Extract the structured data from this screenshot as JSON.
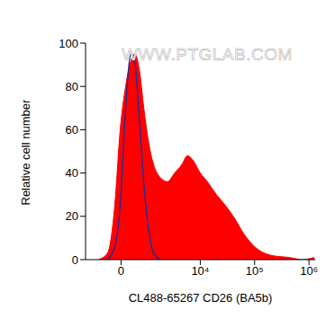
{
  "chart_data": {
    "type": "area",
    "x_label": "CL488-65267 CD26 (BA5b)",
    "y_label": "Relative cell number",
    "annotation": "WWW.PTGLAB.COM",
    "log": "x",
    "grid": false,
    "xlim": [
      -1500,
      1300000
    ],
    "xticks": [
      0,
      {
        "value": 10000,
        "label": "10⁴"
      },
      {
        "value": 100000,
        "label": "10⁵"
      },
      {
        "value": 1000000,
        "label": "10⁶"
      }
    ],
    "ylim": [
      0,
      100
    ],
    "yticks": [
      0,
      20,
      40,
      60,
      80,
      100
    ],
    "x": [
      -782,
      -426,
      -190,
      -27,
      135,
      305,
      426,
      593,
      782,
      998,
      1253,
      1757,
      2443,
      3346,
      4578,
      5782,
      7301,
      10000,
      13510,
      19880,
      29120,
      42980,
      62860,
      100000,
      200000,
      430000,
      766000,
      1250000
    ],
    "series": [
      {
        "type": "area",
        "color": "#ff0000",
        "values": [
          0,
          3,
          25,
          60,
          80,
          92,
          95,
          88,
          70,
          55,
          45,
          38,
          36,
          40,
          44,
          48,
          46,
          40,
          36,
          30,
          25,
          19,
          12,
          6,
          2,
          1,
          0,
          1
        ]
      },
      {
        "type": "line",
        "color": "#2b2b8c",
        "values": [
          null,
          0,
          6,
          25,
          70,
          95,
          92,
          65,
          35,
          15,
          4,
          0,
          null,
          null,
          null,
          null,
          null,
          null,
          null,
          null,
          null,
          null,
          null,
          null,
          null,
          null,
          null,
          null
        ]
      }
    ]
  }
}
